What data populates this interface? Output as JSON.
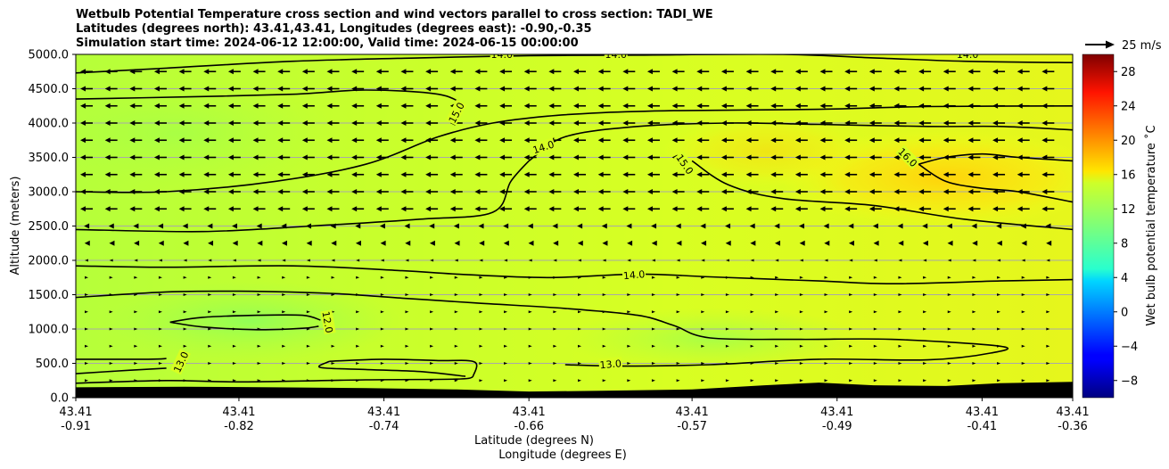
{
  "chart_data": {
    "type": "heatmap",
    "title_lines": [
      "Wetbulb Potential Temperature cross section and wind vectors parallel to cross section: TADI_WE",
      "Latitudes (degrees north): 43.41,43.41, Longitudes (degrees east): -0.90,-0.35",
      "Simulation start time: 2024-06-12 12:00:00, Valid time: 2024-06-15 00:00:00"
    ],
    "ylabel": "Altitude (meters)",
    "xlabel_lat": "Latitude (degrees N)",
    "xlabel_lon": "Longitude (degrees E)",
    "ylim": [
      0,
      5000
    ],
    "y_ticks": [
      "0.0",
      "500.0",
      "1000.0",
      "1500.0",
      "2000.0",
      "2500.0",
      "3000.0",
      "3500.0",
      "4000.0",
      "4500.0",
      "5000.0"
    ],
    "y_tick_values": [
      0,
      500,
      1000,
      1500,
      2000,
      2500,
      3000,
      3500,
      4000,
      4500,
      5000
    ],
    "x_ticks_lat": [
      "43.41",
      "43.41",
      "43.41",
      "43.41",
      "43.41",
      "43.41",
      "43.41",
      "43.41"
    ],
    "x_ticks_lon": [
      "-0.91",
      "-0.82",
      "-0.74",
      "-0.66",
      "-0.57",
      "-0.49",
      "-0.41",
      "-0.36"
    ],
    "x_tick_values": [
      -0.91,
      -0.82,
      -0.74,
      -0.66,
      -0.57,
      -0.49,
      -0.41,
      -0.36
    ],
    "xlim": [
      -0.91,
      -0.36
    ],
    "colorbar": {
      "label": "Wet bulb potential temperature ˚C",
      "range": [
        -10,
        30
      ],
      "ticks": [
        "−8",
        "−4",
        "0",
        "4",
        "8",
        "12",
        "16",
        "20",
        "24",
        "28"
      ],
      "tick_values": [
        -8,
        -4,
        0,
        4,
        8,
        12,
        16,
        20,
        24,
        28
      ],
      "colormap": "jet"
    },
    "quiver_key": "25 m/s",
    "contour_labels": [
      {
        "text": "14.0",
        "lon": -0.652,
        "alt": 3650,
        "rot": -18
      },
      {
        "text": "15.0",
        "lon": -0.574,
        "alt": 3400,
        "rot": 55
      },
      {
        "text": "16.0",
        "lon": -0.451,
        "alt": 3500,
        "rot": 45
      },
      {
        "text": "15.0",
        "lon": -0.7,
        "alt": 4150,
        "rot": -62
      },
      {
        "text": "14.0",
        "lon": -0.602,
        "alt": 1790,
        "rot": -5
      },
      {
        "text": "12.0",
        "lon": -0.771,
        "alt": 1100,
        "rot": 80
      },
      {
        "text": "13.0",
        "lon": -0.852,
        "alt": 520,
        "rot": -65
      },
      {
        "text": "13.0",
        "lon": -0.615,
        "alt": 490,
        "rot": -5
      },
      {
        "text": "14.0",
        "lon": -0.675,
        "alt": 5000,
        "rot": 0
      },
      {
        "text": "14.0",
        "lon": -0.612,
        "alt": 5000,
        "rot": 0
      },
      {
        "text": "14.0",
        "lon": -0.418,
        "alt": 5000,
        "rot": 0
      }
    ],
    "contours": [
      {
        "level": 14,
        "points": [
          [
            -0.91,
            4730
          ],
          [
            -0.86,
            4800
          ],
          [
            -0.79,
            4900
          ],
          [
            -0.72,
            4950
          ],
          [
            -0.66,
            4980
          ],
          [
            -0.6,
            4990
          ],
          [
            -0.52,
            5000
          ],
          [
            -0.47,
            4950
          ],
          [
            -0.42,
            4900
          ],
          [
            -0.36,
            4880
          ]
        ]
      },
      {
        "level": 15,
        "points": [
          [
            -0.91,
            4350
          ],
          [
            -0.85,
            4380
          ],
          [
            -0.79,
            4420
          ],
          [
            -0.75,
            4480
          ],
          [
            -0.71,
            4420
          ],
          [
            -0.695,
            4250
          ]
        ]
      },
      {
        "level": 15,
        "points": [
          [
            -0.91,
            3000
          ],
          [
            -0.86,
            3000
          ],
          [
            -0.8,
            3150
          ],
          [
            -0.75,
            3400
          ],
          [
            -0.71,
            3800
          ],
          [
            -0.68,
            4000
          ],
          [
            -0.65,
            4100
          ],
          [
            -0.62,
            4150
          ],
          [
            -0.58,
            4180
          ],
          [
            -0.5,
            4200
          ],
          [
            -0.44,
            4240
          ],
          [
            -0.36,
            4250
          ]
        ]
      },
      {
        "level": 15,
        "points": [
          [
            -0.57,
            3450
          ],
          [
            -0.55,
            3100
          ],
          [
            -0.52,
            2900
          ],
          [
            -0.47,
            2800
          ],
          [
            -0.42,
            2600
          ],
          [
            -0.36,
            2450
          ]
        ]
      },
      {
        "level": 16,
        "points": [
          [
            -0.445,
            3400
          ],
          [
            -0.43,
            3500
          ],
          [
            -0.41,
            3550
          ],
          [
            -0.39,
            3500
          ],
          [
            -0.36,
            3450
          ]
        ]
      },
      {
        "level": 16,
        "points": [
          [
            -0.445,
            3400
          ],
          [
            -0.43,
            3150
          ],
          [
            -0.41,
            3050
          ],
          [
            -0.39,
            3000
          ],
          [
            -0.36,
            2850
          ]
        ]
      },
      {
        "level": 14,
        "points": [
          [
            -0.66,
            3450
          ],
          [
            -0.64,
            3800
          ],
          [
            -0.6,
            3950
          ],
          [
            -0.55,
            4000
          ],
          [
            -0.5,
            3980
          ],
          [
            -0.44,
            3950
          ],
          [
            -0.4,
            3950
          ],
          [
            -0.36,
            3900
          ]
        ]
      },
      {
        "level": 14,
        "points": [
          [
            -0.66,
            3450
          ],
          [
            -0.67,
            3150
          ],
          [
            -0.68,
            2700
          ],
          [
            -0.72,
            2600
          ],
          [
            -0.78,
            2500
          ],
          [
            -0.84,
            2420
          ],
          [
            -0.91,
            2450
          ]
        ]
      },
      {
        "level": 14,
        "points": [
          [
            -0.91,
            1920
          ],
          [
            -0.86,
            1900
          ],
          [
            -0.79,
            1920
          ],
          [
            -0.73,
            1850
          ],
          [
            -0.7,
            1800
          ],
          [
            -0.65,
            1750
          ],
          [
            -0.6,
            1800
          ],
          [
            -0.56,
            1760
          ],
          [
            -0.5,
            1700
          ],
          [
            -0.46,
            1660
          ],
          [
            -0.4,
            1700
          ],
          [
            -0.36,
            1720
          ]
        ]
      },
      {
        "level": 13,
        "points": [
          [
            -0.91,
            1460
          ],
          [
            -0.86,
            1540
          ],
          [
            -0.82,
            1550
          ],
          [
            -0.77,
            1520
          ],
          [
            -0.73,
            1450
          ],
          [
            -0.69,
            1380
          ],
          [
            -0.64,
            1300
          ],
          [
            -0.6,
            1200
          ],
          [
            -0.58,
            1050
          ],
          [
            -0.56,
            870
          ],
          [
            -0.51,
            850
          ],
          [
            -0.46,
            850
          ],
          [
            -0.4,
            750
          ],
          [
            -0.405,
            650
          ],
          [
            -0.44,
            550
          ],
          [
            -0.5,
            560
          ],
          [
            -0.56,
            480
          ],
          [
            -0.61,
            460
          ],
          [
            -0.64,
            480
          ]
        ]
      },
      {
        "level": 12,
        "points": [
          [
            -0.858,
            1100
          ],
          [
            -0.84,
            1170
          ],
          [
            -0.81,
            1200
          ],
          [
            -0.785,
            1200
          ],
          [
            -0.775,
            1130
          ]
        ]
      },
      {
        "level": 12,
        "points": [
          [
            -0.858,
            1100
          ],
          [
            -0.84,
            1030
          ],
          [
            -0.81,
            990
          ],
          [
            -0.785,
            1010
          ],
          [
            -0.776,
            1040
          ]
        ]
      },
      {
        "level": 13,
        "points": [
          [
            -0.91,
            560
          ],
          [
            -0.87,
            560
          ],
          [
            -0.86,
            570
          ]
        ]
      },
      {
        "level": 13,
        "points": [
          [
            -0.91,
            350
          ],
          [
            -0.88,
            400
          ],
          [
            -0.86,
            430
          ]
        ]
      },
      {
        "level": 13,
        "points": [
          [
            -0.91,
            210
          ],
          [
            -0.86,
            250
          ],
          [
            -0.82,
            230
          ],
          [
            -0.75,
            260
          ],
          [
            -0.7,
            270
          ],
          [
            -0.691,
            300
          ]
        ]
      },
      {
        "level": 13,
        "points": [
          [
            -0.77,
            530
          ],
          [
            -0.74,
            560
          ],
          [
            -0.71,
            540
          ],
          [
            -0.69,
            520
          ],
          [
            -0.691,
            300
          ]
        ]
      },
      {
        "level": 13,
        "points": [
          [
            -0.77,
            530
          ],
          [
            -0.775,
            440
          ],
          [
            -0.75,
            410
          ],
          [
            -0.72,
            380
          ],
          [
            -0.695,
            310
          ]
        ]
      }
    ],
    "terrain": [
      [
        -0.91,
        150
      ],
      [
        -0.85,
        160
      ],
      [
        -0.8,
        150
      ],
      [
        -0.75,
        140
      ],
      [
        -0.7,
        120
      ],
      [
        -0.66,
        90
      ],
      [
        -0.62,
        100
      ],
      [
        -0.57,
        120
      ],
      [
        -0.53,
        180
      ],
      [
        -0.5,
        220
      ],
      [
        -0.47,
        180
      ],
      [
        -0.43,
        170
      ],
      [
        -0.4,
        210
      ],
      [
        -0.36,
        230
      ]
    ]
  }
}
